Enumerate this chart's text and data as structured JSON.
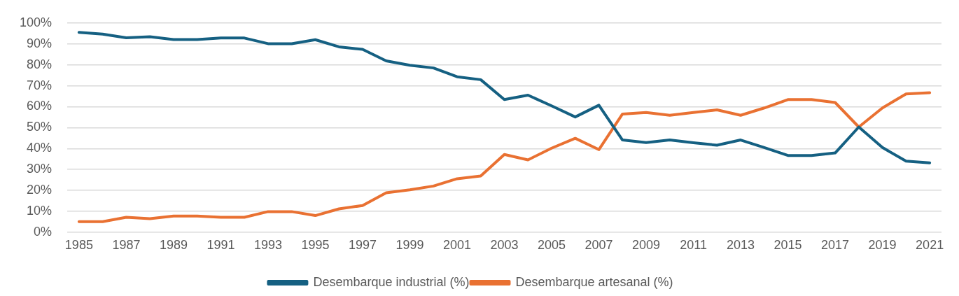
{
  "chart_data": {
    "type": "line",
    "categories": [
      "1985",
      null,
      "1987",
      null,
      "1989",
      null,
      "1991",
      null,
      "1993",
      null,
      "1995",
      null,
      "1997",
      null,
      "1999",
      null,
      "2001",
      null,
      "2003",
      null,
      "2005",
      null,
      "2007",
      null,
      "2009",
      null,
      "2011",
      null,
      "2013",
      null,
      "2015",
      null,
      "2017",
      null,
      "2019",
      null,
      "2021"
    ],
    "series": [
      {
        "name": "Desembarque industrial (%)",
        "color": "#156082",
        "values": [
          95.5,
          94.7,
          92.9,
          93.4,
          92.1,
          92.1,
          92.8,
          92.8,
          90.1,
          90.1,
          92.0,
          88.6,
          87.4,
          81.9,
          79.8,
          78.5,
          74.3,
          72.9,
          63.4,
          65.5,
          60.4,
          55.1,
          60.7,
          44.1,
          42.9,
          44.1,
          42.8,
          41.6,
          44.1,
          40.5,
          36.7,
          36.7,
          37.9,
          50.3,
          40.5,
          34.0,
          33.2
        ]
      },
      {
        "name": "Desembarque artesanal (%)",
        "color": "#e97132",
        "values": [
          5.1,
          5.1,
          7.2,
          6.5,
          7.8,
          7.8,
          7.2,
          7.2,
          9.9,
          9.9,
          8.0,
          11.2,
          12.8,
          18.9,
          20.3,
          22.1,
          25.6,
          26.9,
          37.2,
          34.6,
          40.2,
          44.9,
          39.5,
          56.5,
          57.2,
          55.9,
          57.2,
          58.5,
          55.9,
          59.4,
          63.4,
          63.4,
          62.0,
          50.3,
          59.4,
          66.1,
          66.7
        ]
      }
    ],
    "ylim": [
      0,
      100
    ],
    "yticks": [
      {
        "value": 0,
        "label": "0%"
      },
      {
        "value": 10,
        "label": "10%"
      },
      {
        "value": 20,
        "label": "20%"
      },
      {
        "value": 30,
        "label": "30%"
      },
      {
        "value": 40,
        "label": "40%"
      },
      {
        "value": 50,
        "label": "50%"
      },
      {
        "value": 60,
        "label": "60%"
      },
      {
        "value": 70,
        "label": "70%"
      },
      {
        "value": 80,
        "label": "80%"
      },
      {
        "value": 90,
        "label": "90%"
      },
      {
        "value": 100,
        "label": "100%"
      }
    ],
    "grid": "y",
    "legend": "bottom",
    "marker": "none",
    "line_style": "solid"
  }
}
